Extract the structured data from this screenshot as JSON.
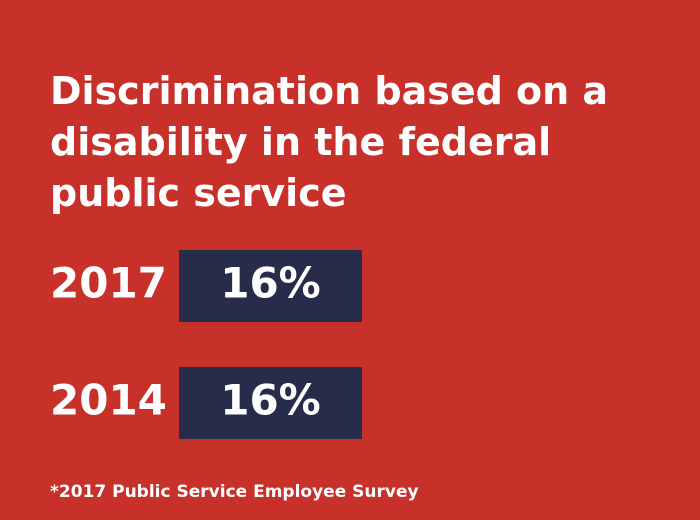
{
  "title_lines": [
    "Discrimination based on a",
    "disability in the federal",
    "public service"
  ],
  "chart_data": {
    "type": "bar",
    "title": "Discrimination based on a disability in the federal public service",
    "categories": [
      "2017",
      "2014"
    ],
    "values": [
      16,
      16
    ],
    "value_labels": [
      "16%",
      "16%"
    ],
    "unit": "%",
    "orientation": "horizontal",
    "xlabel": "",
    "ylabel": "",
    "grid": false
  },
  "footnote": "*2017 Public Service Employee Survey",
  "colors": {
    "background": "#c8302a",
    "bar": "#272c4a",
    "text": "#ffffff"
  }
}
